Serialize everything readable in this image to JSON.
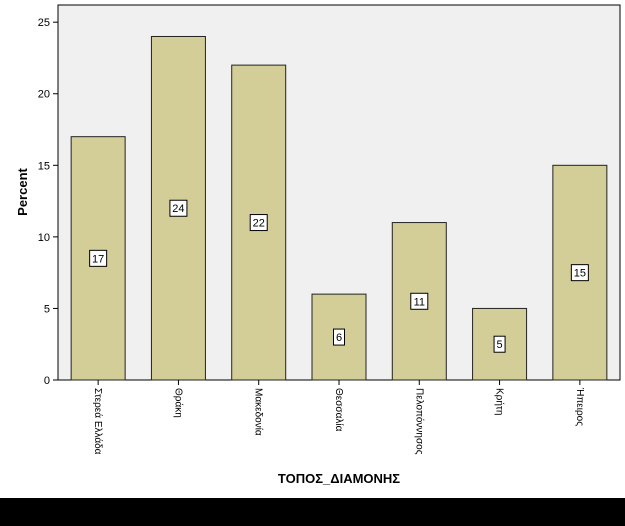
{
  "chart_data": {
    "type": "bar",
    "title": "",
    "xlabel": "ΤΟΠΟΣ_ΔΙΑΜΟΝΗΣ",
    "ylabel": "Percent",
    "categories": [
      "Στερεά Ελλάδα",
      "Θράκη",
      "Μακεδονία",
      "Θεσσαλία",
      "Πελοπόννησος",
      "Κρήτη",
      "Ήπειρος"
    ],
    "values": [
      17,
      24,
      22,
      6,
      11,
      5,
      15
    ],
    "data_labels": [
      "17",
      "24",
      "22",
      "6",
      "11",
      "5",
      "15"
    ],
    "yticks": [
      "0",
      "5",
      "10",
      "15",
      "20",
      "25"
    ],
    "ylim": [
      0,
      26.2
    ],
    "grid": false,
    "legend": "none"
  },
  "colors": {
    "plot_background": "#f0f0f0",
    "bar_fill": "#d3ce98",
    "bar_stroke": "#222222",
    "bottom_band": "#000000"
  }
}
